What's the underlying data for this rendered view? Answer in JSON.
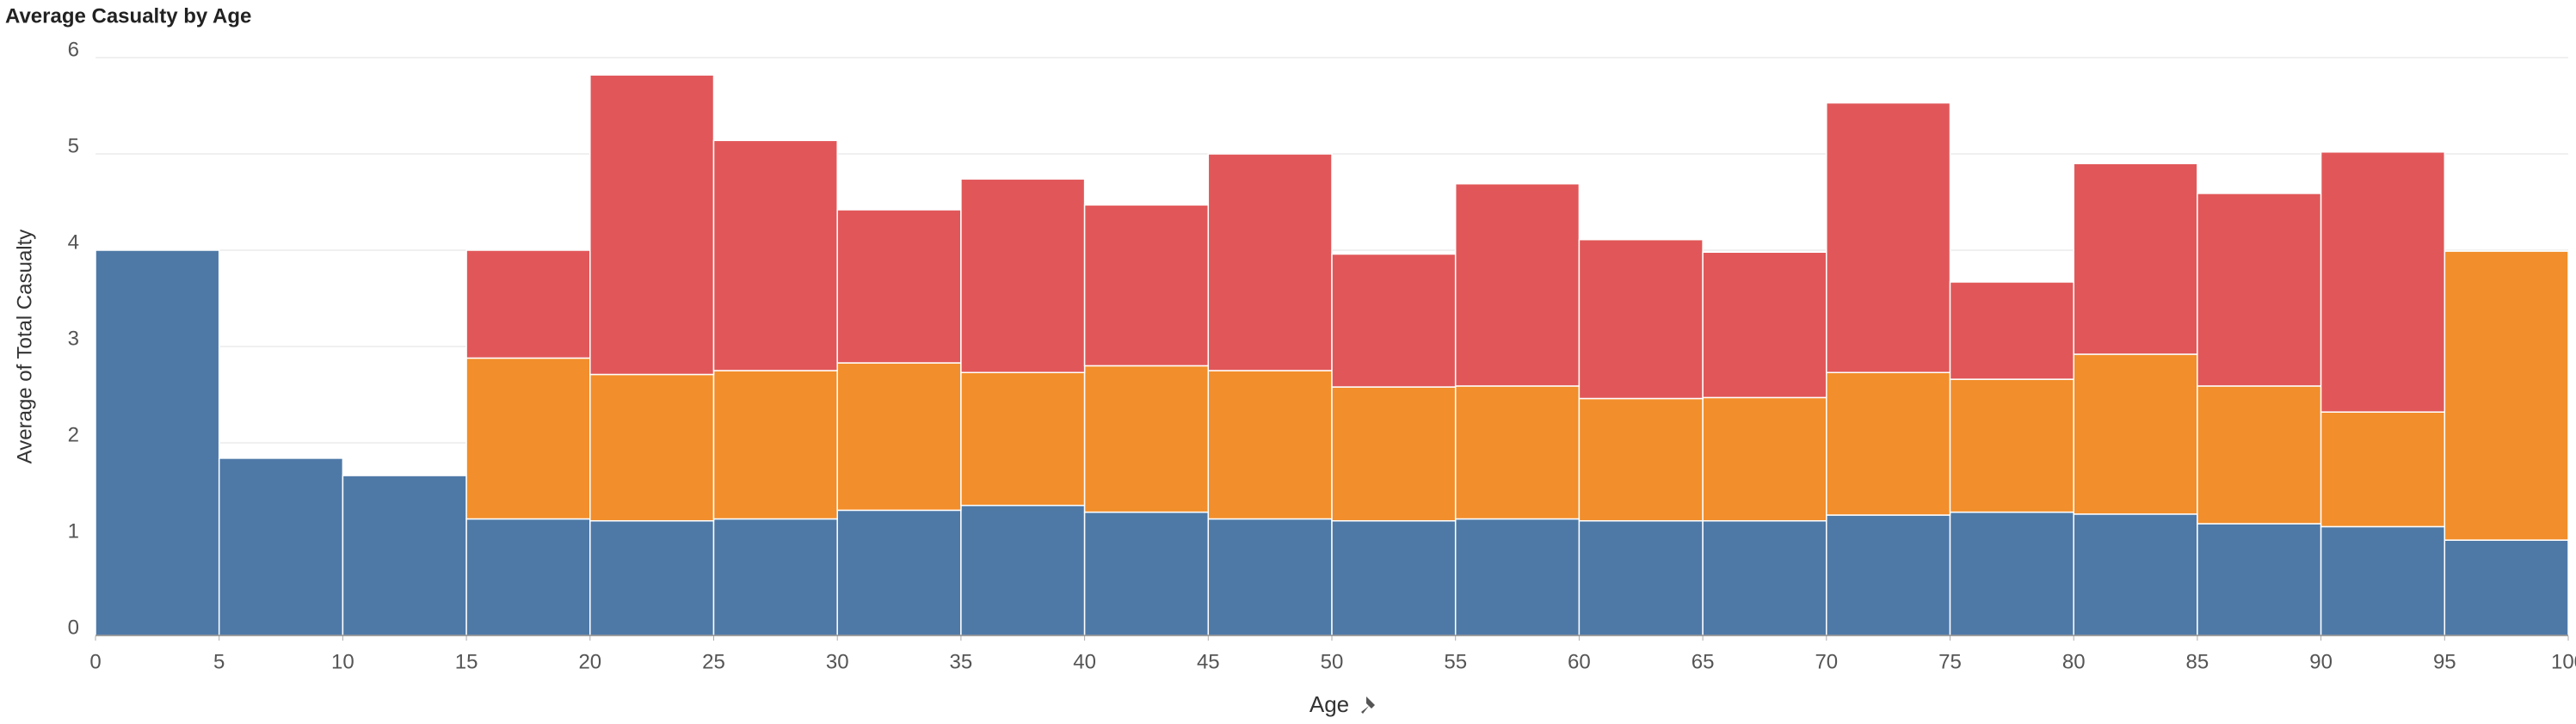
{
  "chart_data": {
    "type": "histogram",
    "stacked": true,
    "title": "Average Casualty by Age",
    "x_label": "Age",
    "y_label": "Average of Total Casualty",
    "bins": [
      0,
      5,
      10,
      15,
      20,
      25,
      30,
      35,
      40,
      45,
      50,
      55,
      60,
      65,
      70,
      75,
      80,
      85,
      90,
      95,
      100
    ],
    "series": [
      {
        "color": "#4e79a7",
        "values": [
          4.0,
          1.84,
          1.66,
          1.21,
          1.19,
          1.21,
          1.3,
          1.35,
          1.28,
          1.21,
          1.19,
          1.21,
          1.19,
          1.19,
          1.25,
          1.28,
          1.26,
          1.16,
          1.13,
          0.99
        ]
      },
      {
        "color": "#f28e2b",
        "values": [
          null,
          null,
          null,
          1.67,
          1.52,
          1.54,
          1.53,
          1.38,
          1.52,
          1.54,
          1.39,
          1.38,
          1.27,
          1.28,
          1.48,
          1.38,
          1.66,
          1.43,
          1.19,
          3.0
        ]
      },
      {
        "color": "#e15759",
        "values": [
          null,
          null,
          null,
          1.12,
          3.11,
          2.39,
          1.59,
          2.01,
          1.67,
          2.25,
          1.38,
          2.1,
          1.65,
          1.51,
          2.8,
          1.01,
          1.98,
          2.0,
          2.7,
          null
        ]
      }
    ],
    "xlim": [
      0,
      100
    ],
    "xticks": [
      0,
      5,
      10,
      15,
      20,
      25,
      30,
      35,
      40,
      45,
      50,
      55,
      60,
      65,
      70,
      75,
      80,
      85,
      90,
      95,
      100
    ],
    "ylim": [
      0,
      6
    ],
    "yticks": [
      0,
      1,
      2,
      3,
      4,
      5,
      6
    ],
    "grid": true
  }
}
